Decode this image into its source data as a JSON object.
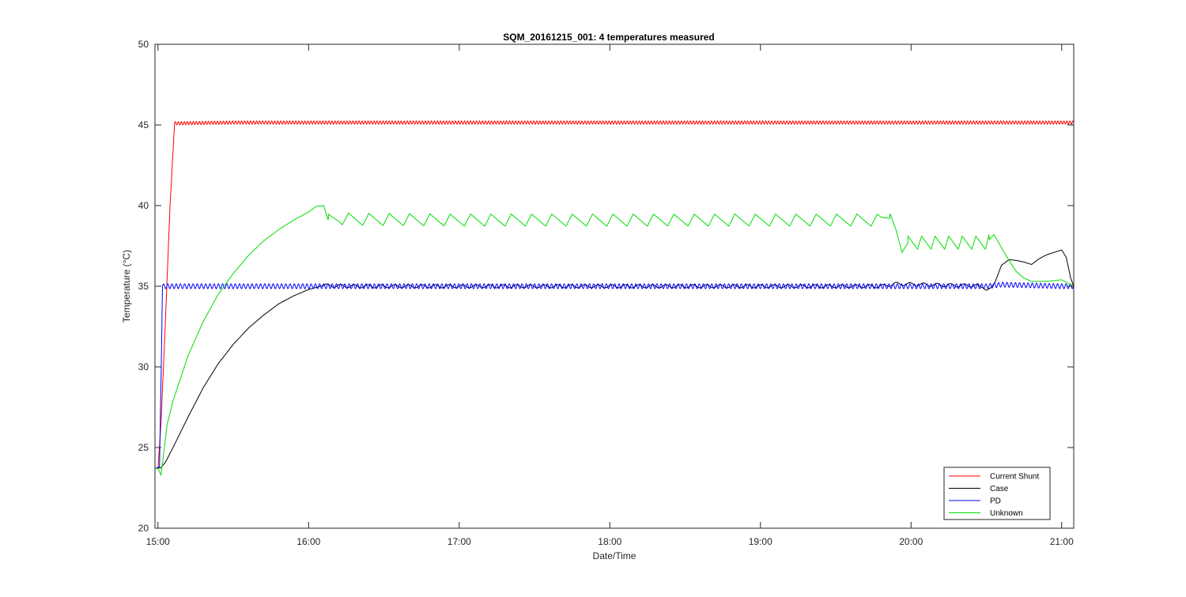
{
  "chart_data": {
    "type": "line",
    "title": "SQM_20161215_001: 4 temperatures measured",
    "xlabel": "Date/Time",
    "ylabel": "Temperature (°C)",
    "ylim": [
      20,
      50
    ],
    "xlim_hours": [
      14.98,
      21.08
    ],
    "yticks": [
      20,
      25,
      30,
      35,
      40,
      45,
      50
    ],
    "xticks": [
      {
        "hour": 15,
        "label": "15:00"
      },
      {
        "hour": 16,
        "label": "16:00"
      },
      {
        "hour": 17,
        "label": "17:00"
      },
      {
        "hour": 18,
        "label": "18:00"
      },
      {
        "hour": 19,
        "label": "19:00"
      },
      {
        "hour": 20,
        "label": "20:00"
      },
      {
        "hour": 21,
        "label": "21:00"
      }
    ],
    "grid": false,
    "legend_position": "bottom-right",
    "series": [
      {
        "name": "Current Shunt",
        "color": "#ff0000",
        "points": [
          [
            14.98,
            23.7
          ],
          [
            15.0,
            23.7
          ],
          [
            15.02,
            26.5
          ],
          [
            15.05,
            33.0
          ],
          [
            15.08,
            40.0
          ],
          [
            15.11,
            45.1
          ],
          [
            15.5,
            45.15
          ],
          [
            16.0,
            45.15
          ],
          [
            17.0,
            45.15
          ],
          [
            18.0,
            45.15
          ],
          [
            19.0,
            45.15
          ],
          [
            20.0,
            45.15
          ],
          [
            21.0,
            45.15
          ],
          [
            21.08,
            45.15
          ]
        ],
        "ripple_start": 15.11,
        "ripple_amplitude": 0.1,
        "ripple_period_h": 0.02
      },
      {
        "name": "Case",
        "color": "#000000",
        "points": [
          [
            14.98,
            23.7
          ],
          [
            15.02,
            23.75
          ],
          [
            15.05,
            24.1
          ],
          [
            15.1,
            25.0
          ],
          [
            15.2,
            26.9
          ],
          [
            15.3,
            28.7
          ],
          [
            15.4,
            30.2
          ],
          [
            15.5,
            31.4
          ],
          [
            15.6,
            32.4
          ],
          [
            15.7,
            33.2
          ],
          [
            15.8,
            33.9
          ],
          [
            15.9,
            34.4
          ],
          [
            16.0,
            34.8
          ],
          [
            16.1,
            35.05
          ],
          [
            16.3,
            35.0
          ],
          [
            17.0,
            35.0
          ],
          [
            18.0,
            35.0
          ],
          [
            19.0,
            35.0
          ],
          [
            19.8,
            35.0
          ],
          [
            19.9,
            35.15
          ],
          [
            20.3,
            35.05
          ],
          [
            20.45,
            35.05
          ],
          [
            20.5,
            34.75
          ],
          [
            20.53,
            34.9
          ],
          [
            20.56,
            35.3
          ],
          [
            20.6,
            36.3
          ],
          [
            20.65,
            36.65
          ],
          [
            20.7,
            36.6
          ],
          [
            20.75,
            36.5
          ],
          [
            20.8,
            36.35
          ],
          [
            20.85,
            36.7
          ],
          [
            20.9,
            36.95
          ],
          [
            20.95,
            37.1
          ],
          [
            21.0,
            37.25
          ],
          [
            21.03,
            36.8
          ],
          [
            21.06,
            35.5
          ],
          [
            21.08,
            35.0
          ]
        ],
        "ripple_start": 16.1,
        "ripple_end": 20.45,
        "ripple_amplitude": 0.1,
        "ripple_period_h": 0.09
      },
      {
        "name": "PD",
        "color": "#0000ff",
        "points": [
          [
            14.98,
            23.7
          ],
          [
            15.01,
            23.8
          ],
          [
            15.02,
            29.0
          ],
          [
            15.03,
            35.0
          ],
          [
            16.0,
            35.0
          ],
          [
            17.0,
            35.0
          ],
          [
            18.0,
            35.0
          ],
          [
            19.0,
            35.0
          ],
          [
            20.0,
            35.0
          ],
          [
            20.5,
            35.0
          ],
          [
            20.6,
            35.1
          ],
          [
            21.0,
            35.0
          ],
          [
            21.08,
            35.0
          ]
        ],
        "ripple_start": 15.03,
        "ripple_amplitude": 0.15,
        "ripple_period_h": 0.028
      },
      {
        "name": "Unknown",
        "color": "#00dd00",
        "points": [
          [
            14.98,
            23.7
          ],
          [
            15.0,
            23.7
          ],
          [
            15.02,
            23.3
          ],
          [
            15.04,
            24.8
          ],
          [
            15.06,
            26.4
          ],
          [
            15.1,
            27.9
          ],
          [
            15.2,
            30.7
          ],
          [
            15.3,
            32.8
          ],
          [
            15.4,
            34.5
          ],
          [
            15.5,
            35.8
          ],
          [
            15.6,
            36.9
          ],
          [
            15.7,
            37.8
          ],
          [
            15.8,
            38.5
          ],
          [
            15.9,
            39.1
          ],
          [
            16.0,
            39.6
          ],
          [
            16.05,
            39.95
          ],
          [
            16.1,
            40.0
          ],
          [
            16.13,
            39.1
          ],
          [
            16.2,
            39.2
          ],
          [
            16.3,
            39.15
          ],
          [
            17.0,
            39.1
          ],
          [
            18.0,
            39.1
          ],
          [
            19.0,
            39.1
          ],
          [
            19.8,
            39.1
          ],
          [
            19.86,
            39.5
          ],
          [
            19.9,
            38.5
          ],
          [
            19.94,
            37.1
          ],
          [
            19.98,
            37.7
          ],
          [
            20.5,
            37.7
          ],
          [
            20.55,
            38.2
          ],
          [
            20.6,
            37.4
          ],
          [
            20.65,
            36.6
          ],
          [
            20.7,
            35.9
          ],
          [
            20.75,
            35.5
          ],
          [
            20.8,
            35.3
          ],
          [
            20.9,
            35.3
          ],
          [
            21.0,
            35.4
          ],
          [
            21.08,
            35.0
          ]
        ],
        "sawtooth_segments": [
          {
            "start": 16.13,
            "end": 19.86,
            "period_h": 0.135,
            "amplitude": 0.75
          },
          {
            "start": 19.98,
            "end": 20.52,
            "period_h": 0.09,
            "amplitude": 0.8
          }
        ]
      }
    ]
  }
}
